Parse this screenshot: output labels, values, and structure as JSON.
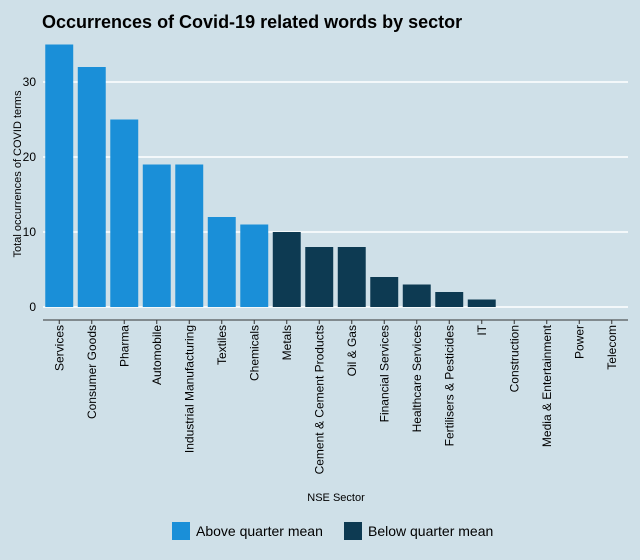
{
  "chart_data": {
    "type": "bar",
    "title": "Occurrences of Covid-19 related words by sector",
    "xlabel": "NSE Sector",
    "ylabel": "Total occurrences of COVID terms",
    "ylim": [
      0,
      37
    ],
    "yticks": [
      0,
      10,
      20,
      30
    ],
    "grid": "horizontal",
    "legend_position": "bottom",
    "categories": [
      "Services",
      "Consumer Goods",
      "Pharma",
      "Automobile",
      "Industrial Manufacturing",
      "Textiles",
      "Chemicals",
      "Metals",
      "Cement & Cement Products",
      "Oil & Gas",
      "Financial Services",
      "Healthcare Services",
      "Fertilisers & Pesticides",
      "IT",
      "Construction",
      "Media & Entertainment",
      "Power",
      "Telecom"
    ],
    "values": [
      35,
      32,
      25,
      19,
      19,
      12,
      11,
      10,
      8,
      8,
      4,
      3,
      2,
      1,
      0,
      0,
      0,
      0
    ],
    "groups": [
      "above",
      "above",
      "above",
      "above",
      "above",
      "above",
      "above",
      "below",
      "below",
      "below",
      "below",
      "below",
      "below",
      "below",
      "below",
      "below",
      "below",
      "below"
    ],
    "legend": [
      {
        "key": "above",
        "label": "Above quarter mean",
        "color": "#1a8fd8"
      },
      {
        "key": "below",
        "label": "Below quarter mean",
        "color": "#0d3a52"
      }
    ]
  }
}
